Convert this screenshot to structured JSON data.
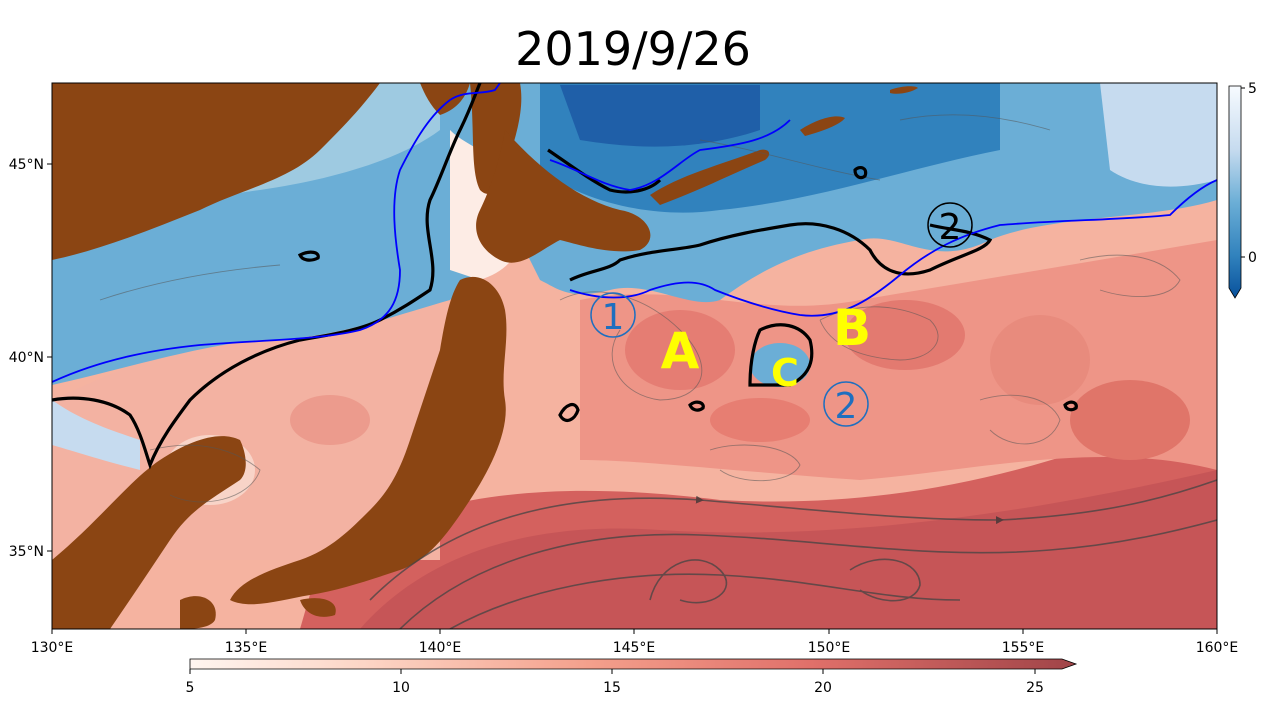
{
  "title": "2019/9/26",
  "map": {
    "lon_range": [
      130,
      160
    ],
    "lat_range": [
      33,
      47
    ],
    "lon_ticks": [
      "130°E",
      "135°E",
      "140°E",
      "145°E",
      "150°E",
      "155°E",
      "160°E"
    ],
    "lat_ticks": [
      "35°N",
      "40°N",
      "45°N"
    ],
    "land_color": "#8b4513",
    "front_line_color": "#0000ff",
    "contour_color": "#000000"
  },
  "labels": {
    "A": "A",
    "B": "B",
    "C": "C",
    "circle_1": "1",
    "circle_2_blue": "2",
    "circle_2_black": "2"
  },
  "colorbar_warm": {
    "ticks": [
      "5",
      "10",
      "15",
      "20",
      "25"
    ],
    "colors": [
      "#fff5f0",
      "#fee0d2",
      "#fcbba1",
      "#f4a08c",
      "#ec8a7a",
      "#e07066",
      "#cf5e5c",
      "#b9504f",
      "#a04448"
    ]
  },
  "colorbar_cold": {
    "ticks": [
      "5",
      "0"
    ],
    "colors": [
      "#f7fbff",
      "#c6dbef",
      "#9ecae1",
      "#6baed6",
      "#3182bd",
      "#08519c"
    ]
  }
}
